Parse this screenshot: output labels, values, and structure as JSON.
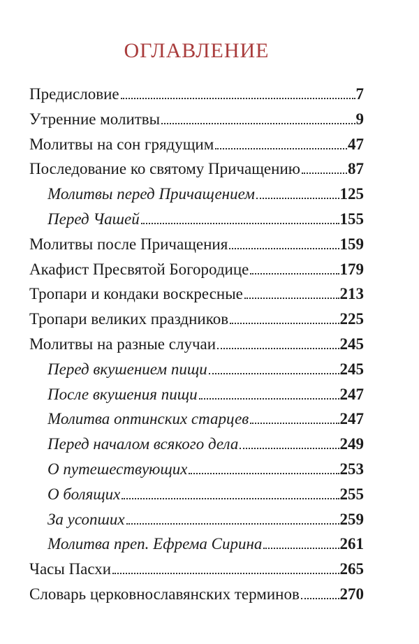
{
  "page": {
    "background": "#ffffff",
    "text_color": "#1b1b1b"
  },
  "title": {
    "text": "ОГЛАВЛЕНИЕ",
    "color": "#a93c3c"
  },
  "toc": {
    "entries": [
      {
        "label": "Предисловие",
        "page": "7",
        "level": "main"
      },
      {
        "label": "Утренние молитвы",
        "page": "9",
        "level": "main"
      },
      {
        "label": "Молитвы на сон грядущим",
        "page": "47",
        "level": "main"
      },
      {
        "label": "Последование ко святому Причащению",
        "page": "87",
        "level": "main"
      },
      {
        "label": "Молитвы перед Причащением",
        "page": "125",
        "level": "sub"
      },
      {
        "label": "Перед Чашей",
        "page": "155",
        "level": "sub"
      },
      {
        "label": "Молитвы после Причащения",
        "page": "159",
        "level": "main"
      },
      {
        "label": "Акафист Пресвятой Богородице",
        "page": "179",
        "level": "main"
      },
      {
        "label": "Тропари и кондаки воскресные",
        "page": "213",
        "level": "main"
      },
      {
        "label": "Тропари великих праздников",
        "page": "225",
        "level": "main"
      },
      {
        "label": "Молитвы на разные случаи",
        "page": "245",
        "level": "main"
      },
      {
        "label": "Перед вкушением пищи",
        "page": "245",
        "level": "sub"
      },
      {
        "label": "После вкушения пищи",
        "page": "247",
        "level": "sub"
      },
      {
        "label": "Молитва оптинских старцев",
        "page": "247",
        "level": "sub"
      },
      {
        "label": "Перед началом всякого дела",
        "page": "249",
        "level": "sub"
      },
      {
        "label": "О путешествующих",
        "page": "253",
        "level": "sub"
      },
      {
        "label": "О болящих",
        "page": "255",
        "level": "sub"
      },
      {
        "label": "За усопших",
        "page": "259",
        "level": "sub"
      },
      {
        "label": "Молитва преп. Ефрема Сирина",
        "page": "261",
        "level": "sub"
      },
      {
        "label": "Часы Пасхи",
        "page": "265",
        "level": "main"
      },
      {
        "label": "Словарь церковнославянских терминов",
        "page": "270",
        "level": "main"
      }
    ]
  }
}
